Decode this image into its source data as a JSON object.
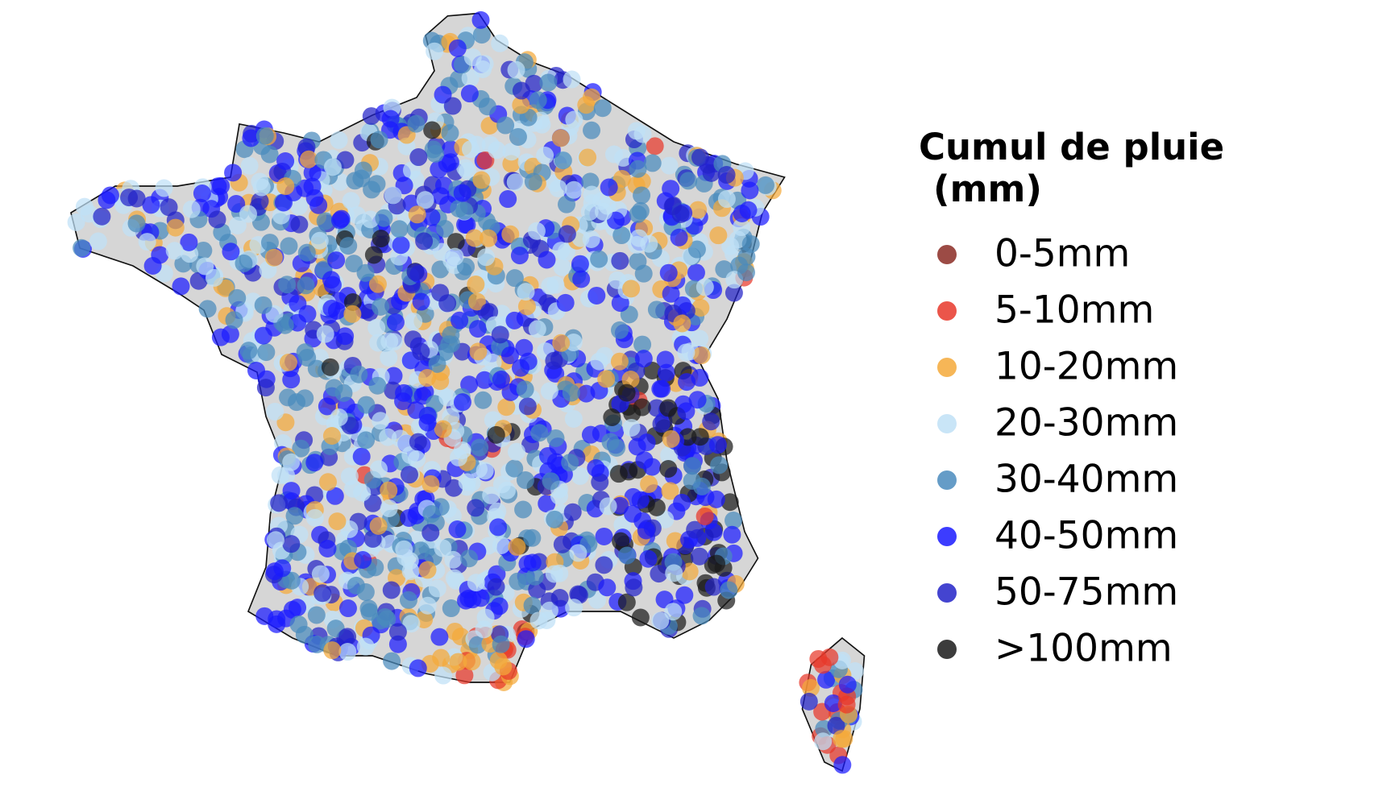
{
  "legend": {
    "title_lines": [
      "Cumul de pluie",
      "(mm)"
    ],
    "entries": [
      {
        "label": "0-5mm",
        "color": "#8b2b25"
      },
      {
        "label": "5-10mm",
        "color": "#e8372a"
      },
      {
        "label": "10-20mm",
        "color": "#f4a93a"
      },
      {
        "label": "20-30mm",
        "color": "#bfe0f6"
      },
      {
        "label": "30-40mm",
        "color": "#4a8bbd"
      },
      {
        "label": "40-50mm",
        "color": "#1a1aff"
      },
      {
        "label": "50-75mm",
        "color": "#2323c8"
      },
      {
        ">100mm": null,
        "label": ">100mm",
        "color": "#1a1a1a"
      }
    ]
  }
}
